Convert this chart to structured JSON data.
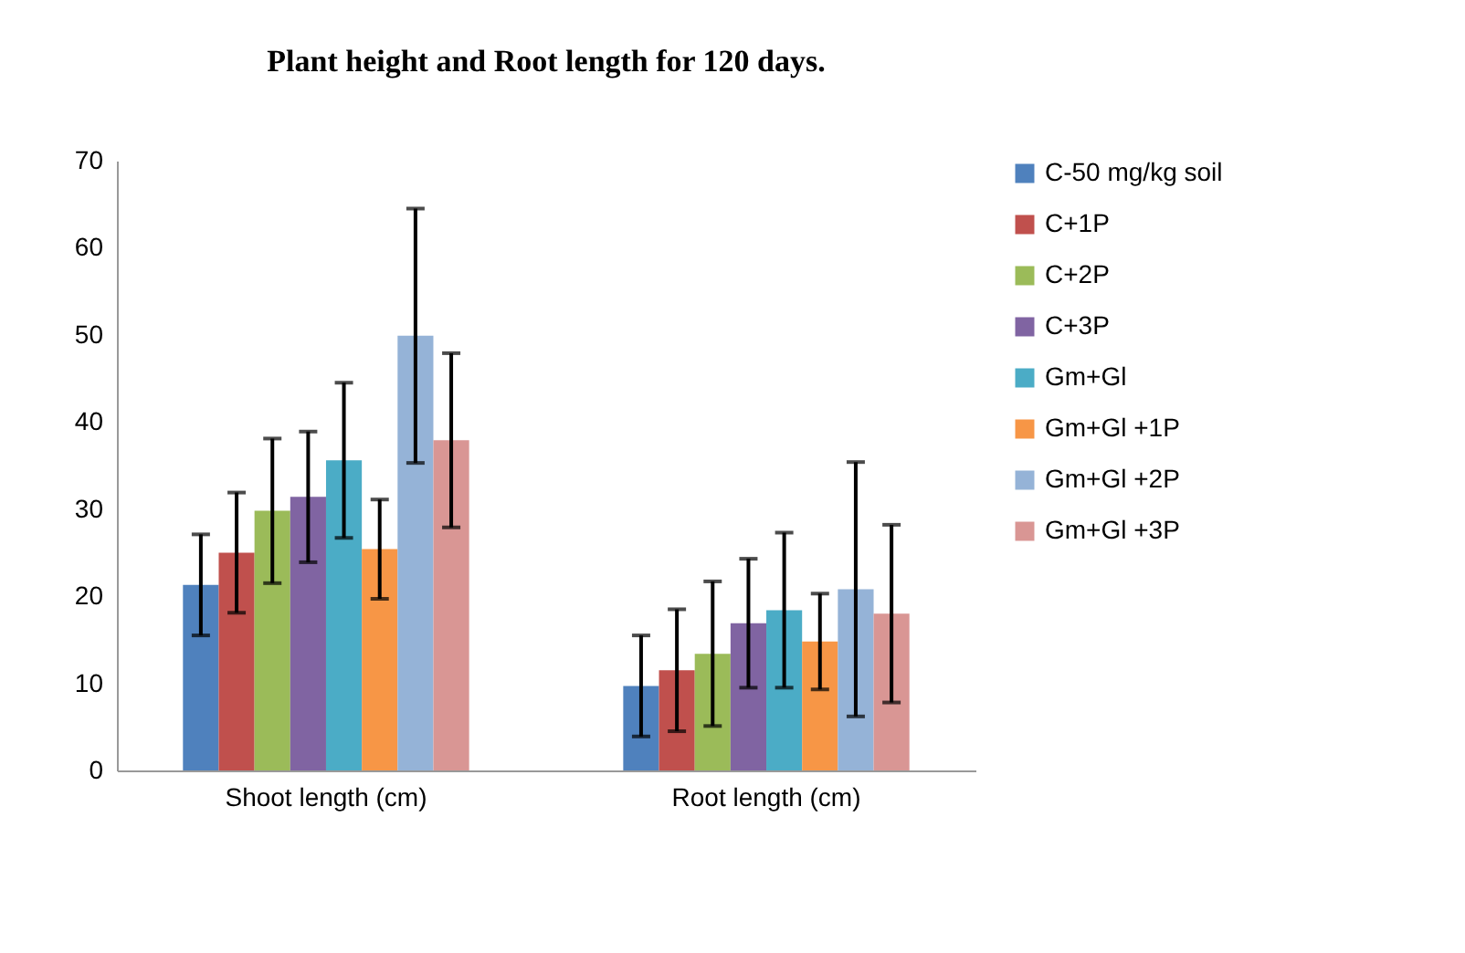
{
  "chart_data": {
    "type": "bar",
    "title": "Plant height and Root length for 120 days.",
    "categories": [
      "Shoot length (cm)",
      "Root length (cm)"
    ],
    "series": [
      {
        "name": "C-50 mg/kg soil",
        "color": "#4f81bd",
        "values": [
          21.3,
          9.7
        ],
        "errors": [
          5.8,
          5.8
        ]
      },
      {
        "name": "C+1P",
        "color": "#c0504d",
        "values": [
          25.0,
          11.5
        ],
        "errors": [
          6.9,
          7.0
        ]
      },
      {
        "name": "C+2P",
        "color": "#9bbb59",
        "values": [
          29.8,
          13.4
        ],
        "errors": [
          8.3,
          8.3
        ]
      },
      {
        "name": "C+3P",
        "color": "#8064a2",
        "values": [
          31.4,
          16.9
        ],
        "errors": [
          7.5,
          7.4
        ]
      },
      {
        "name": "Gm+Gl",
        "color": "#4bacc6",
        "values": [
          35.6,
          18.4
        ],
        "errors": [
          8.9,
          8.9
        ]
      },
      {
        "name": "Gm+Gl +1P",
        "color": "#f79646",
        "values": [
          25.4,
          14.8
        ],
        "errors": [
          5.7,
          5.5
        ]
      },
      {
        "name": "Gm+Gl +2P",
        "color": "#95b3d7",
        "values": [
          49.9,
          20.8
        ],
        "errors": [
          14.6,
          14.6
        ]
      },
      {
        "name": "Gm+Gl +3P",
        "color": "#d99694",
        "values": [
          37.9,
          18.0
        ],
        "errors": [
          10.0,
          10.2
        ]
      }
    ],
    "ylim": [
      0,
      70
    ],
    "yticks": [
      0,
      10,
      20,
      30,
      40,
      50,
      60,
      70
    ],
    "grid": false,
    "legend": "right"
  }
}
